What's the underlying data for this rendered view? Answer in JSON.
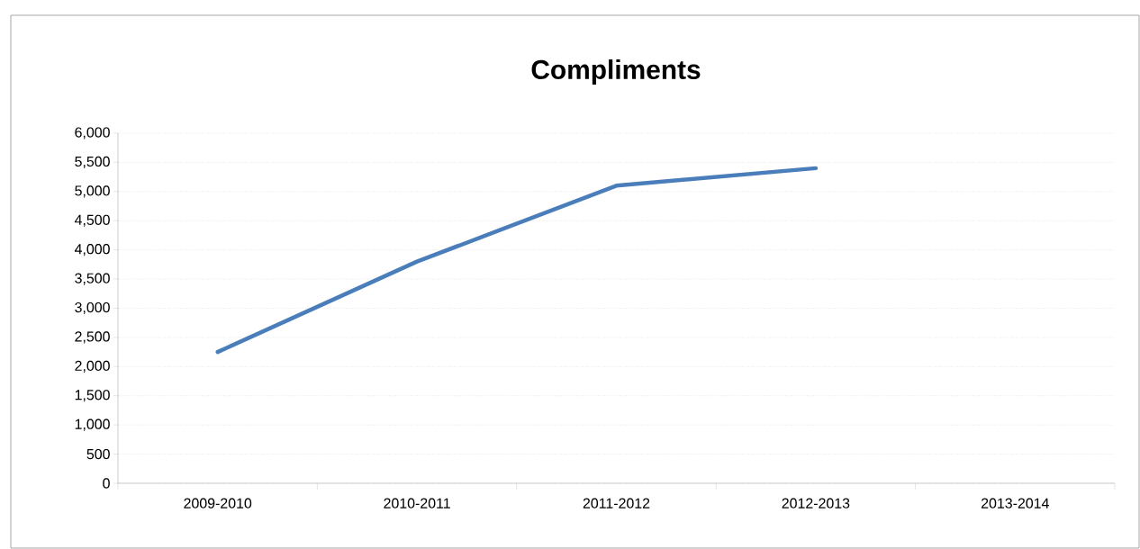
{
  "chart_data": {
    "type": "line",
    "title": "Compliments",
    "categories": [
      "2009-2010",
      "2010-2011",
      "2011-2012",
      "2012-2013",
      "2013-2014"
    ],
    "values": [
      2250,
      3800,
      5100,
      5400,
      null
    ],
    "color": "#4a7ebb",
    "ylim": [
      0,
      6000
    ],
    "yticks": [
      0,
      500,
      {
        "value": 1000,
        "label": "1,000"
      },
      {
        "value": 1500,
        "label": "1,500"
      },
      {
        "value": 2000,
        "label": "2,000"
      },
      {
        "value": 2500,
        "label": "2,500"
      },
      {
        "value": 3000,
        "label": "3,000"
      },
      {
        "value": 3500,
        "label": "3,500"
      },
      {
        "value": 4000,
        "label": "4,000"
      },
      {
        "value": 4500,
        "label": "4,500"
      },
      {
        "value": 5000,
        "label": "5,000"
      },
      {
        "value": 5500,
        "label": "5,500"
      },
      {
        "value": 6000,
        "label": "6,000"
      }
    ],
    "grid": "y",
    "marker": "none",
    "line_style": "solid"
  }
}
